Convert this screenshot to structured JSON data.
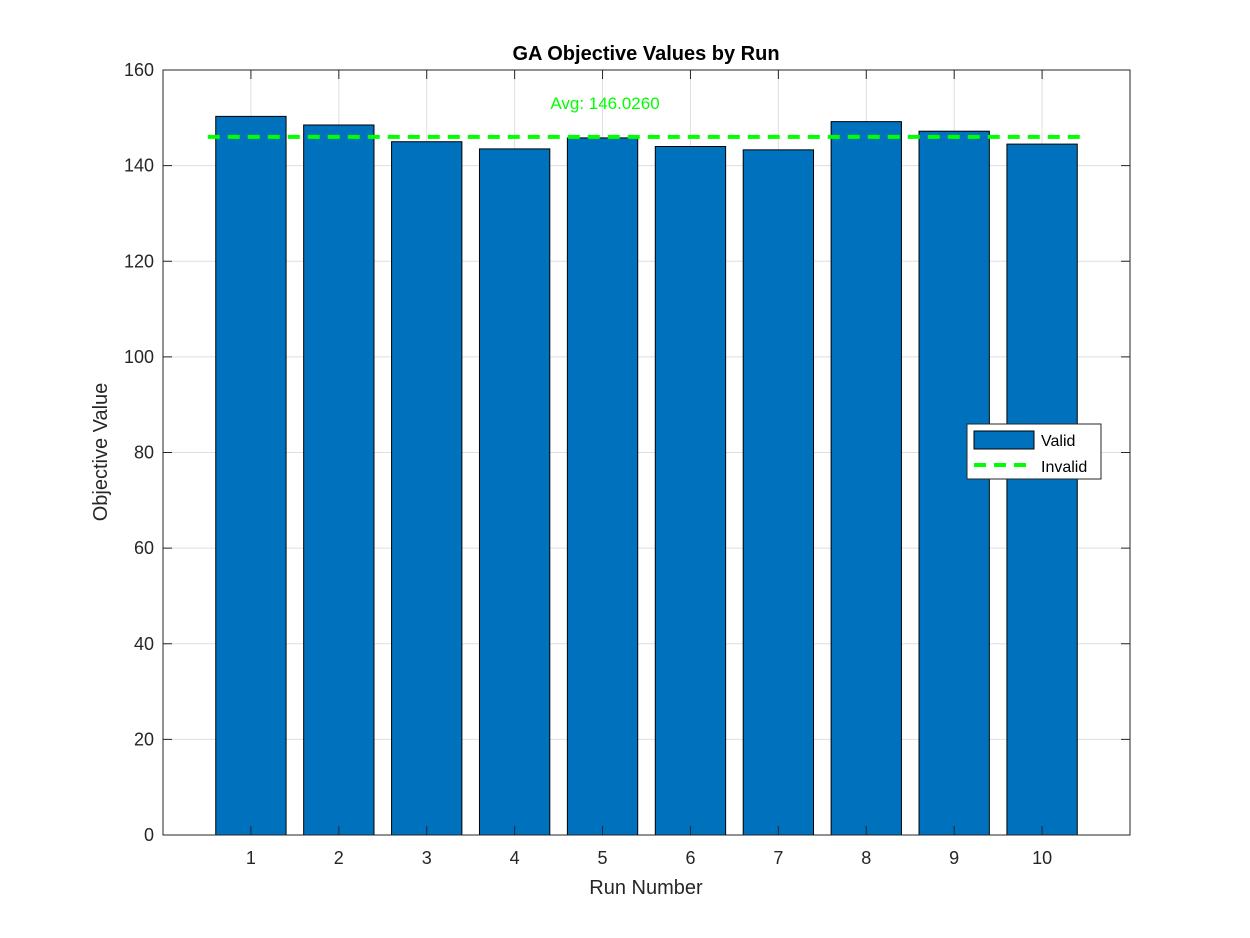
{
  "chart_data": {
    "type": "bar",
    "title": "GA Objective Values by Run",
    "xlabel": "Run Number",
    "ylabel": "Objective Value",
    "categories": [
      "1",
      "2",
      "3",
      "4",
      "5",
      "6",
      "7",
      "8",
      "9",
      "10"
    ],
    "series": [
      {
        "name": "Valid",
        "values": [
          150.3,
          148.5,
          145.0,
          143.5,
          145.8,
          144.0,
          143.3,
          149.2,
          147.2,
          144.5
        ],
        "color": "#0072BD"
      }
    ],
    "reference_line": {
      "name": "Invalid",
      "value": 146.026,
      "color": "#00FF00",
      "style": "dashed"
    },
    "annotation": {
      "text": "Avg: 146.0260",
      "color": "#00FF00"
    },
    "xlim": [
      0,
      11
    ],
    "ylim": [
      0,
      160
    ],
    "yticks": [
      0,
      20,
      40,
      60,
      80,
      100,
      120,
      140,
      160
    ],
    "ytick_labels": [
      "0",
      "20",
      "40",
      "60",
      "80",
      "100",
      "120",
      "140",
      "160"
    ],
    "grid": true,
    "legend_position": "middle-right",
    "legend_entries": [
      "Valid",
      "Invalid"
    ]
  }
}
